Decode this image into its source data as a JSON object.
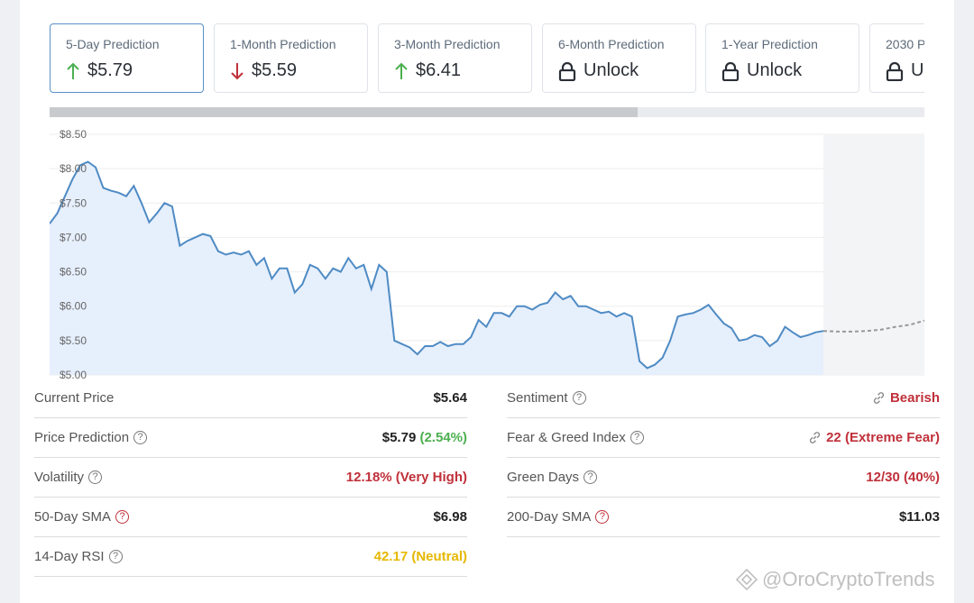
{
  "cards": [
    {
      "label": "5-Day Prediction",
      "value": "$5.79",
      "icon": "arrow-up-icon",
      "color": "#4caf50"
    },
    {
      "label": "1-Month Prediction",
      "value": "$5.59",
      "icon": "arrow-down-icon",
      "color": "#c0303a"
    },
    {
      "label": "3-Month Prediction",
      "value": "$6.41",
      "icon": "arrow-up-icon",
      "color": "#4caf50"
    },
    {
      "label": "6-Month Prediction",
      "value": "Unlock",
      "icon": "lock-icon"
    },
    {
      "label": "1-Year Prediction",
      "value": "Unlock",
      "icon": "lock-icon"
    },
    {
      "label": "2030 P",
      "value": "Ur",
      "icon": "lock-icon"
    }
  ],
  "chart_data": {
    "type": "area",
    "y_ticks": [
      "$8.50",
      "$8.00",
      "$7.50",
      "$7.00",
      "$6.50",
      "$6.00",
      "$5.50",
      "$5.00"
    ],
    "ylim": [
      5.0,
      8.5
    ],
    "series": [
      {
        "values": [
          7.2,
          7.35,
          7.6,
          7.85,
          8.05,
          8.1,
          8.02,
          7.72,
          7.68,
          7.65,
          7.6,
          7.75,
          7.5,
          7.22,
          7.35,
          7.5,
          7.45,
          6.88,
          6.95,
          7.0,
          7.05,
          7.02,
          6.8,
          6.75,
          6.78,
          6.75,
          6.8,
          6.6,
          6.7,
          6.4,
          6.55,
          6.55,
          6.2,
          6.32,
          6.6,
          6.55,
          6.4,
          6.55,
          6.5,
          6.7,
          6.55,
          6.6,
          6.25,
          6.6,
          6.5,
          5.5,
          5.45,
          5.4,
          5.3,
          5.42,
          5.42,
          5.48,
          5.42,
          5.45,
          5.45,
          5.55,
          5.8,
          5.7,
          5.9,
          5.9,
          5.85,
          6.0,
          6.0,
          5.95,
          6.02,
          6.05,
          6.2,
          6.1,
          6.15,
          6.0,
          6.0,
          5.95,
          5.9,
          5.92,
          5.85,
          5.9,
          5.85,
          5.2,
          5.1,
          5.15,
          5.25,
          5.5,
          5.85,
          5.88,
          5.9,
          5.95,
          6.02,
          5.88,
          5.75,
          5.68,
          5.5,
          5.52,
          5.58,
          5.55,
          5.42,
          5.5,
          5.7,
          5.62,
          5.55,
          5.58,
          5.62,
          5.64
        ]
      },
      {
        "values": [
          5.64,
          5.63,
          5.63,
          5.64,
          5.66,
          5.7,
          5.73,
          5.79
        ]
      }
    ],
    "grid": true
  },
  "stats_left": [
    {
      "label": "Current Price",
      "value": "$5.64",
      "help": false
    },
    {
      "label": "Price Prediction",
      "value": "$5.79",
      "value_extra": "(2.54%)",
      "help": true
    },
    {
      "label": "Volatility",
      "value": "12.18% (Very High)",
      "help": true,
      "value_color": "red"
    },
    {
      "label": "50-Day SMA",
      "value": "$6.98",
      "help": true,
      "help_color": "red"
    },
    {
      "label": "14-Day RSI",
      "value": "42.17 (Neutral)",
      "help": true,
      "value_color": "yellow"
    }
  ],
  "stats_right": [
    {
      "label": "Sentiment",
      "value": "Bearish",
      "help": true,
      "value_color": "red",
      "link": true
    },
    {
      "label": "Fear & Greed Index",
      "value": "22 (Extreme Fear)",
      "help": true,
      "value_color": "red",
      "link": true
    },
    {
      "label": "Green Days",
      "value": "12/30 (40%)",
      "help": true,
      "value_color": "red"
    },
    {
      "label": "200-Day SMA",
      "value": "$11.03",
      "help": true,
      "help_color": "red"
    }
  ],
  "watermark": "@OroCryptoTrends",
  "help_glyph": "?"
}
